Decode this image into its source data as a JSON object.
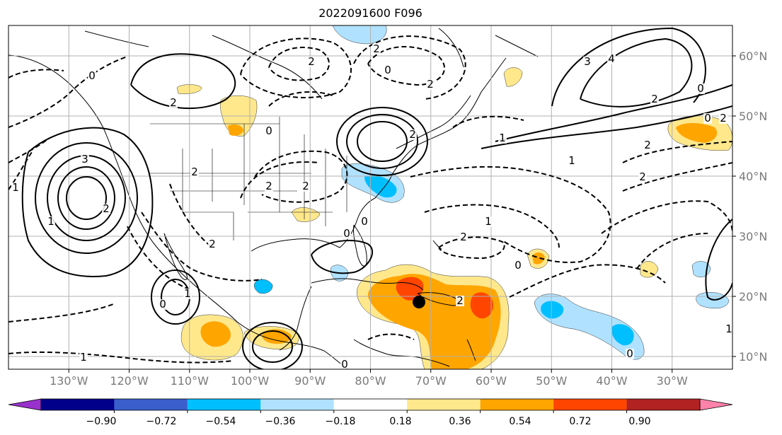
{
  "figure": {
    "title": "2022091600 F096"
  },
  "map": {
    "projection": "plate-carree",
    "lon_range": [
      -136,
      -16
    ],
    "lat_range": [
      8,
      65
    ],
    "lon_ticks": [
      "130°W",
      "120°W",
      "110°W",
      "100°W",
      "90°W",
      "80°W",
      "70°W",
      "60°W",
      "50°W",
      "40°W",
      "30°W"
    ],
    "lat_ticks": [
      "60°N",
      "50°N",
      "40°N",
      "30°N",
      "20°N",
      "10°N"
    ],
    "marker": {
      "name": "storm-center",
      "lon": -69.5,
      "lat": 19.5,
      "color": "#000000"
    }
  },
  "colorbar": {
    "levels": [
      "−0.90",
      "−0.72",
      "−0.54",
      "−0.36",
      "−0.18",
      "0.18",
      "0.36",
      "0.54",
      "0.72",
      "0.90"
    ],
    "colors": [
      "#9932cc",
      "#00008b",
      "#3a5fcd",
      "#00bfff",
      "#b0e2ff",
      "#ffffff",
      "#ffe88c",
      "#ffa500",
      "#ff4500",
      "#b22222",
      "#ff82ab"
    ],
    "extend": "both"
  },
  "contour_labels": [
    "2",
    "2",
    "0",
    "2",
    "2",
    "3",
    "1",
    "2",
    "2",
    "2",
    "0",
    "1",
    "2",
    "0",
    "2",
    "1",
    "4",
    "3",
    "2",
    "0",
    "0",
    "2",
    "2",
    "2",
    "1",
    "2",
    "0",
    "0",
    "1",
    "2",
    "2",
    "0",
    "0",
    "1",
    "0",
    "1",
    "0",
    "1"
  ]
}
